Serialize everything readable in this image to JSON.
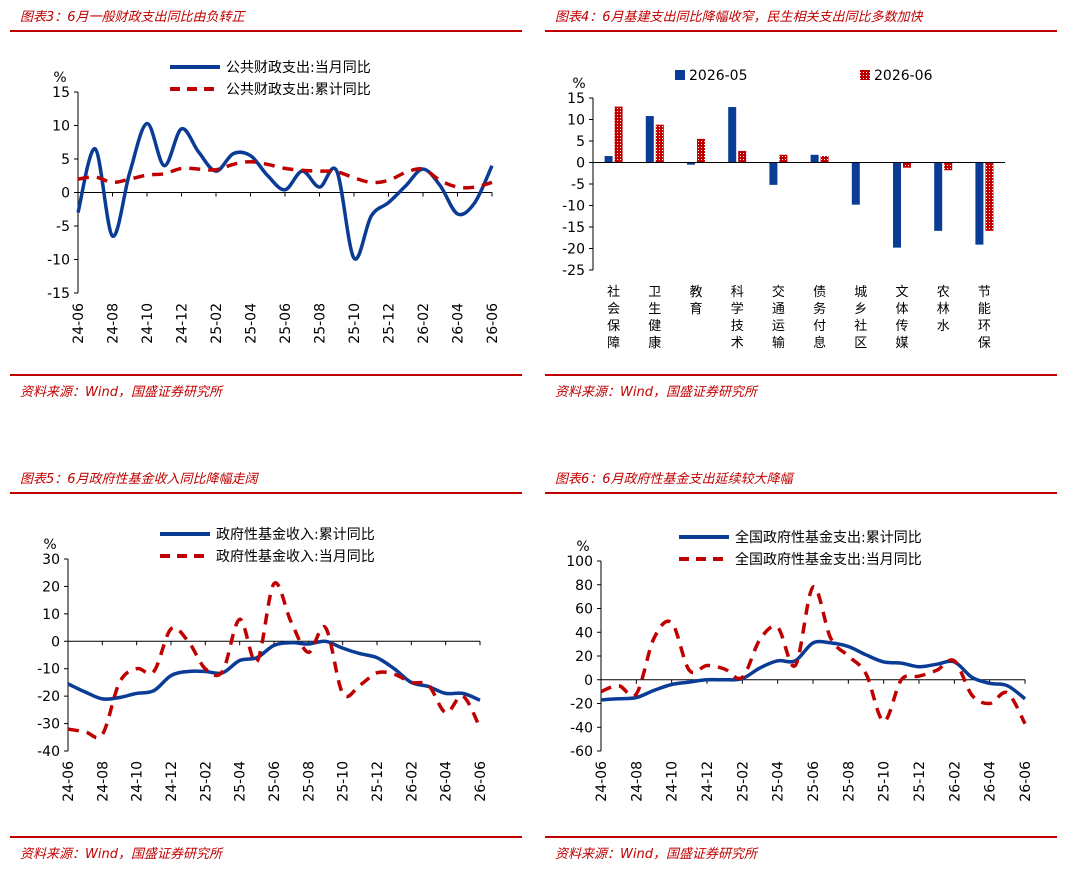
{
  "figures": [
    {
      "id": "p3",
      "title": "图表3：6月一般财政支出同比由负转正",
      "source": "资料来源：Wind，国盛证券研究所"
    },
    {
      "id": "p4",
      "title": "图表4：6月基建支出同比降幅收窄，民生相关支出同比多数加快",
      "source": "资料来源：Wind，国盛证券研究所"
    },
    {
      "id": "p5",
      "title": "图表5：6月政府性基金收入同比降幅走阔",
      "source": "资料来源：Wind，国盛证券研究所"
    },
    {
      "id": "p6",
      "title": "图表6：6月政府性基金支出延续较大降幅",
      "source": "资料来源：Wind，国盛证券研究所"
    }
  ],
  "chart_data": [
    {
      "type": "line",
      "unit": "%",
      "x": [
        "24-06",
        "24-07",
        "24-08",
        "24-09",
        "24-10",
        "24-11",
        "24-12",
        "25-01",
        "25-02",
        "25-03",
        "25-04",
        "25-05",
        "25-06",
        "25-07",
        "25-08",
        "25-09",
        "25-10",
        "25-11",
        "25-12",
        "26-01",
        "26-02",
        "26-03",
        "26-04",
        "26-05",
        "26-06"
      ],
      "xticks": [
        "24-06",
        "24-08",
        "24-10",
        "24-12",
        "25-02",
        "25-04",
        "25-06",
        "25-08",
        "25-10",
        "25-12",
        "26-02",
        "26-04",
        "26-06"
      ],
      "ylim": [
        -15,
        15
      ],
      "yticks": [
        15,
        10,
        5,
        0,
        -5,
        -10,
        -15
      ],
      "legend_position": "top",
      "series": [
        {
          "name": "公共财政支出:当月同比",
          "style": "solid",
          "color": "#0a3c96",
          "values": [
            -3,
            6.5,
            -6.5,
            3,
            10.3,
            4,
            9.5,
            6,
            3.2,
            5.8,
            5.5,
            2.5,
            0.4,
            3.2,
            0.8,
            3.2,
            -9.8,
            -3.5,
            -1.5,
            1,
            3.5,
            1,
            -3.2,
            -1.5,
            4
          ]
        },
        {
          "name": "公共财政支出:累计同比",
          "style": "dashed",
          "color": "#c00000",
          "values": [
            2,
            2.3,
            1.5,
            2,
            2.6,
            2.8,
            3.6,
            3.5,
            3.4,
            4.2,
            4.6,
            4.2,
            3.6,
            3.3,
            3.2,
            3.1,
            2.2,
            1.5,
            1.8,
            3,
            3.5,
            1.8,
            0.8,
            0.8,
            1.5
          ]
        }
      ]
    },
    {
      "type": "bar",
      "unit": "%",
      "categories": [
        "社会保障",
        "卫生健康",
        "教育",
        "科学技术",
        "交通运输",
        "债务付息",
        "城乡社区",
        "文体传媒",
        "农林水",
        "节能环保"
      ],
      "ylim": [
        -25,
        15
      ],
      "yticks": [
        15,
        10,
        5,
        0,
        -5,
        -10,
        -15,
        -20,
        -25
      ],
      "legend_position": "top",
      "series": [
        {
          "name": "2026-05",
          "color": "#0a3c96",
          "pattern": "solid",
          "values": [
            1.5,
            10.8,
            -0.5,
            12.9,
            -5.2,
            1.8,
            -9.8,
            -19.8,
            -15.9,
            -19.1
          ]
        },
        {
          "name": "2026-06",
          "color": "#c00000",
          "pattern": "dotted",
          "values": [
            13,
            8.8,
            5.5,
            2.7,
            1.8,
            1.5,
            0,
            -1.2,
            -1.8,
            -15.9
          ]
        }
      ]
    },
    {
      "type": "line",
      "unit": "%",
      "x": [
        "24-06",
        "24-07",
        "24-08",
        "24-09",
        "24-10",
        "24-11",
        "24-12",
        "25-01",
        "25-02",
        "25-03",
        "25-04",
        "25-05",
        "25-06",
        "25-07",
        "25-08",
        "25-09",
        "25-10",
        "25-11",
        "25-12",
        "26-01",
        "26-02",
        "26-03",
        "26-04",
        "26-05",
        "26-06"
      ],
      "xticks": [
        "24-06",
        "24-08",
        "24-10",
        "24-12",
        "25-02",
        "25-04",
        "25-06",
        "25-08",
        "25-10",
        "25-12",
        "26-02",
        "26-04",
        "26-06"
      ],
      "ylim": [
        -40,
        30
      ],
      "yticks": [
        30,
        20,
        10,
        0,
        -10,
        -20,
        -30,
        -40
      ],
      "legend_position": "top",
      "series": [
        {
          "name": "政府性基金收入:累计同比",
          "style": "solid",
          "color": "#0a3c96",
          "values": [
            -15.5,
            -18.5,
            -21,
            -20.5,
            -19,
            -18,
            -12.5,
            -11,
            -11,
            -11.5,
            -7,
            -6,
            -1.5,
            -0.5,
            -1,
            0,
            -2.5,
            -4.5,
            -6,
            -10,
            -15,
            -16.5,
            -19,
            -19,
            -21.5
          ]
        },
        {
          "name": "政府性基金收入:当月同比",
          "style": "dashed",
          "color": "#c00000",
          "values": [
            -32,
            -33,
            -34,
            -15,
            -10,
            -11,
            4.5,
            0,
            -10,
            -11,
            8,
            -7.5,
            21,
            7,
            -4,
            5,
            -19,
            -16,
            -11.5,
            -12,
            -15,
            -16,
            -26,
            -20,
            -31.5
          ]
        }
      ]
    },
    {
      "type": "line",
      "unit": "%",
      "x": [
        "24-06",
        "24-07",
        "24-08",
        "24-09",
        "24-10",
        "24-11",
        "24-12",
        "25-01",
        "25-02",
        "25-03",
        "25-04",
        "25-05",
        "25-06",
        "25-07",
        "25-08",
        "25-09",
        "25-10",
        "25-11",
        "25-12",
        "26-01",
        "26-02",
        "26-03",
        "26-04",
        "26-05",
        "26-06"
      ],
      "xticks": [
        "24-06",
        "24-08",
        "24-10",
        "24-12",
        "25-02",
        "25-04",
        "25-06",
        "25-08",
        "25-10",
        "25-12",
        "26-02",
        "26-04",
        "26-06"
      ],
      "ylim": [
        -60,
        100
      ],
      "yticks": [
        100,
        80,
        60,
        40,
        20,
        0,
        -20,
        -40,
        -60
      ],
      "legend_position": "top",
      "series": [
        {
          "name": "全国政府性基金支出:累计同比",
          "style": "solid",
          "color": "#0a3c96",
          "values": [
            -17,
            -16,
            -15,
            -9,
            -4,
            -2,
            0,
            0,
            1,
            10,
            16,
            16,
            31,
            31,
            28,
            21,
            15,
            14,
            11,
            13,
            15,
            2,
            -3,
            -5,
            -16
          ]
        },
        {
          "name": "全国政府性基金支出:当月同比",
          "style": "dashed",
          "color": "#c00000",
          "values": [
            -10,
            -5,
            -12,
            35,
            48,
            8,
            12,
            9,
            2,
            34,
            44,
            12,
            78,
            35,
            20,
            5,
            -35,
            0,
            3,
            8,
            16,
            -13,
            -20,
            -11,
            -37
          ]
        }
      ]
    }
  ]
}
